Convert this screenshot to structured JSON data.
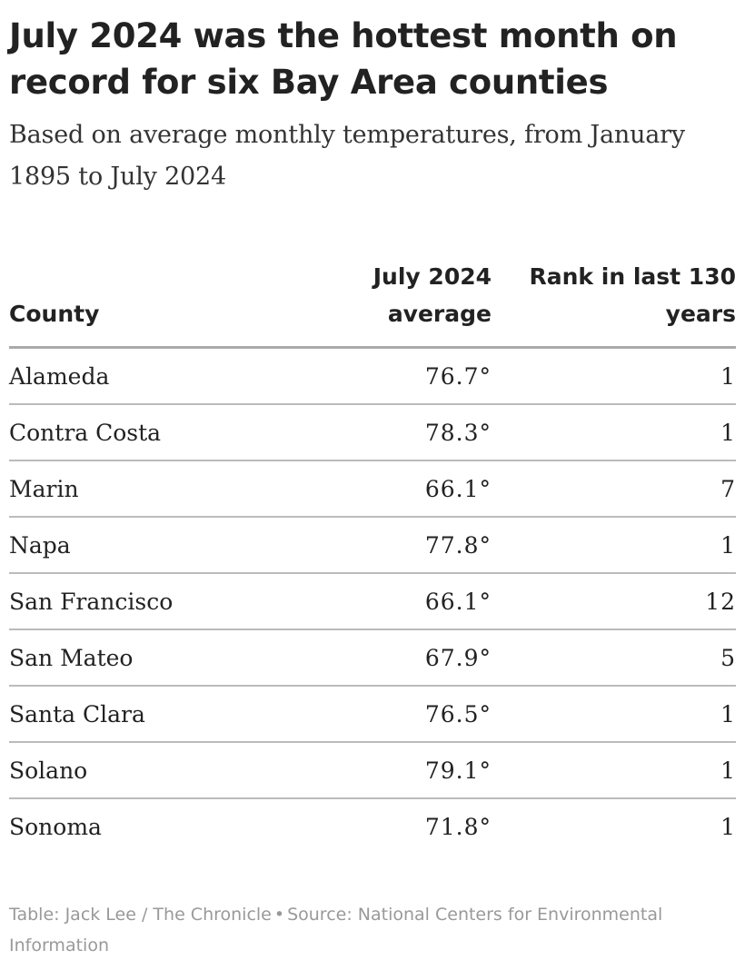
{
  "header": {
    "title": "July 2024 was the hottest month on record for six Bay Area counties",
    "subtitle": "Based on average monthly temperatures, from January 1895 to July 2024"
  },
  "chart_data": {
    "type": "table",
    "columns": [
      "County",
      "July 2024 average",
      "Rank in last 130 years"
    ],
    "rows": [
      {
        "county": "Alameda",
        "average": "76.7°",
        "rank": "1"
      },
      {
        "county": "Contra Costa",
        "average": "78.3°",
        "rank": "1"
      },
      {
        "county": "Marin",
        "average": "66.1°",
        "rank": "7"
      },
      {
        "county": "Napa",
        "average": "77.8°",
        "rank": "1"
      },
      {
        "county": "San Francisco",
        "average": "66.1°",
        "rank": "12"
      },
      {
        "county": "San Mateo",
        "average": "67.9°",
        "rank": "5"
      },
      {
        "county": "Santa Clara",
        "average": "76.5°",
        "rank": "1"
      },
      {
        "county": "Solano",
        "average": "79.1°",
        "rank": "1"
      },
      {
        "county": "Sonoma",
        "average": "71.8°",
        "rank": "1"
      }
    ]
  },
  "footer": {
    "credit": "Table: Jack Lee / The Chronicle",
    "separator": "•",
    "source": "Source: National Centers for Environmental Information"
  }
}
